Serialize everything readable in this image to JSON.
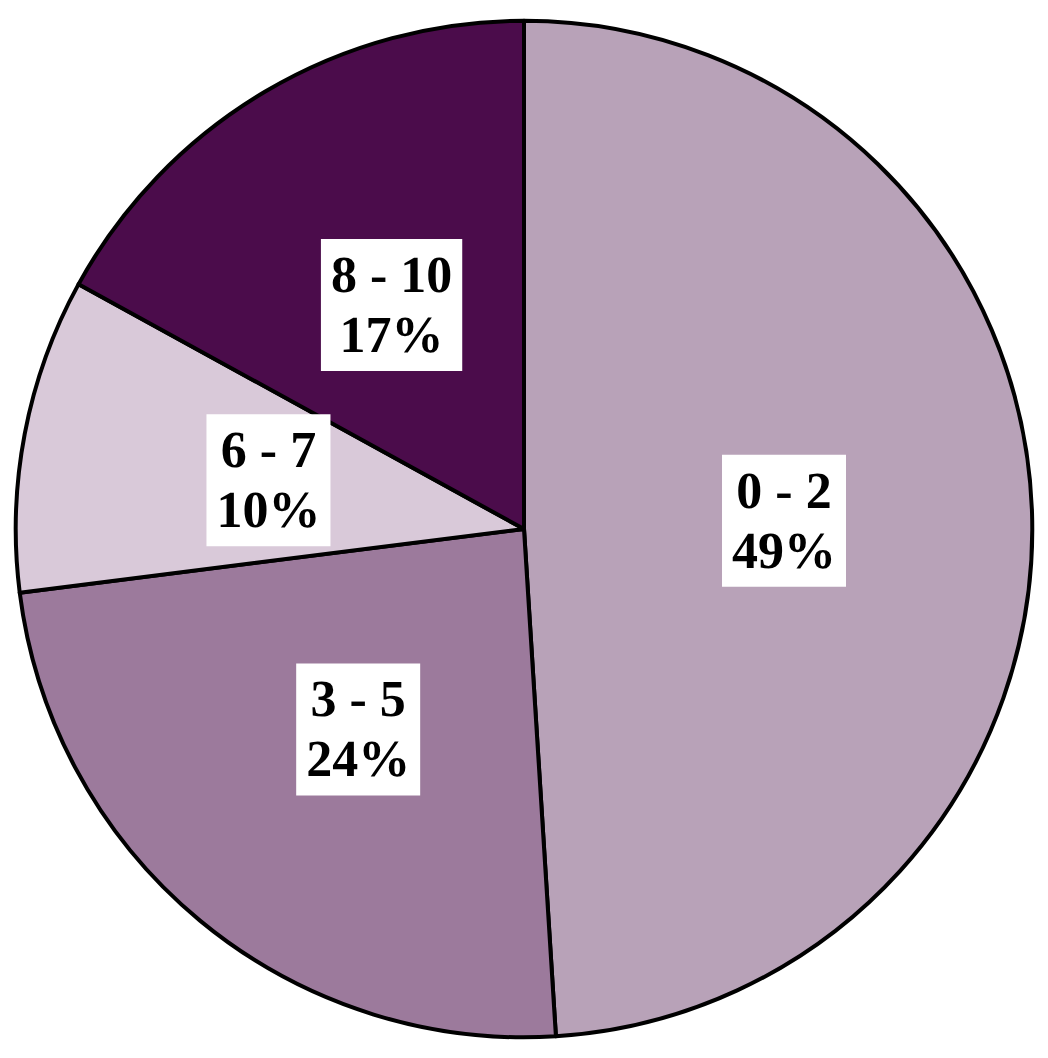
{
  "chart_data": {
    "type": "pie",
    "categories": [
      "0 - 2",
      "3 - 5",
      "6 - 7",
      "8 - 10"
    ],
    "values": [
      49,
      24,
      10,
      17
    ],
    "value_labels": [
      "49%",
      "24%",
      "10%",
      "17%"
    ],
    "colors": [
      "#b8a2b8",
      "#9c7a9c",
      "#d9c9d9",
      "#4b0c4b"
    ],
    "legend": false
  }
}
